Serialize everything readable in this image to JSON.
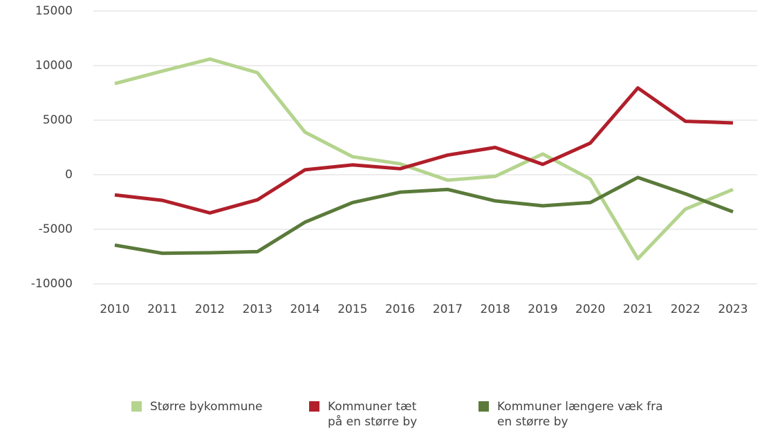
{
  "chart_data": {
    "type": "line",
    "categories": [
      "2010",
      "2011",
      "2012",
      "2013",
      "2014",
      "2015",
      "2016",
      "2017",
      "2018",
      "2019",
      "2020",
      "2021",
      "2022",
      "2023"
    ],
    "series": [
      {
        "name": "Større bykommune",
        "color": "#b5d48e",
        "values": [
          8350,
          9500,
          10600,
          9350,
          3900,
          1650,
          1000,
          -500,
          -150,
          1900,
          -400,
          -7700,
          -3150,
          -1350
        ]
      },
      {
        "name": "Kommuner tæt på en større by",
        "color": "#b01f2a",
        "values": [
          -1850,
          -2350,
          -3500,
          -2300,
          450,
          900,
          550,
          1800,
          2500,
          950,
          2900,
          7950,
          4900,
          4750
        ]
      },
      {
        "name": "Kommuner længere væk fra en større by",
        "color": "#5a7a3a",
        "values": [
          -6450,
          -7200,
          -7150,
          -7050,
          -4350,
          -2550,
          -1600,
          -1350,
          -2400,
          -2850,
          -2550,
          -250,
          -1750,
          -3400
        ]
      }
    ],
    "ylim": [
      -10000,
      15000
    ],
    "yticks": [
      -10000,
      -5000,
      0,
      5000,
      10000,
      15000
    ],
    "grid": true,
    "legend": "bottom"
  }
}
